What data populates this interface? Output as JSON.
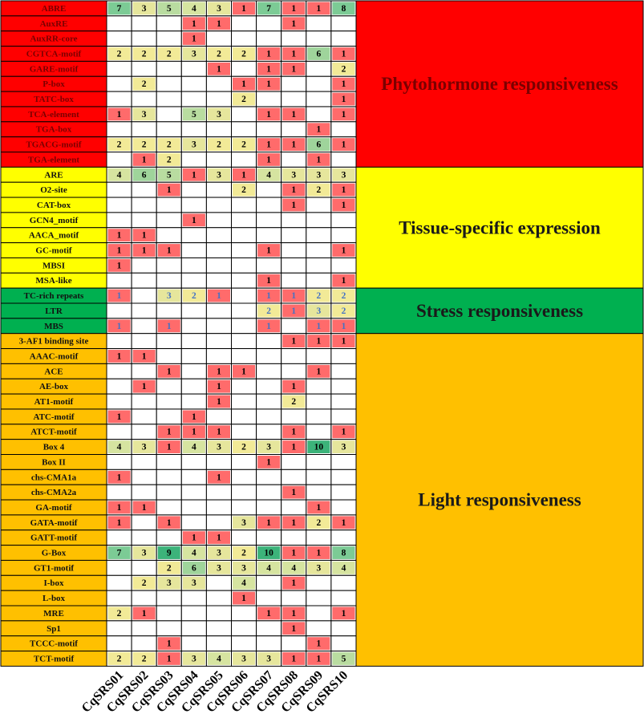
{
  "chart_data": {
    "type": "heatmap",
    "columns": [
      "CqSRS01",
      "CqSRS02",
      "CqSRS03",
      "CqSRS04",
      "CqSRS05",
      "CqSRS06",
      "CqSRS07",
      "CqSRS08",
      "CqSRS09",
      "CqSRS10"
    ],
    "rows": [
      {
        "motif": "ABRE",
        "values": [
          7,
          3,
          5,
          4,
          3,
          1,
          7,
          1,
          1,
          8
        ]
      },
      {
        "motif": "AuxRE",
        "values": [
          null,
          null,
          null,
          1,
          1,
          null,
          null,
          1,
          null,
          null
        ]
      },
      {
        "motif": "AuxRR-core",
        "values": [
          null,
          null,
          null,
          1,
          null,
          null,
          null,
          null,
          null,
          null
        ]
      },
      {
        "motif": "CGTCA-motif",
        "values": [
          2,
          2,
          2,
          3,
          2,
          2,
          1,
          1,
          6,
          1
        ]
      },
      {
        "motif": "GARE-motif",
        "values": [
          null,
          null,
          null,
          null,
          1,
          null,
          1,
          1,
          null,
          2
        ]
      },
      {
        "motif": "P-box",
        "values": [
          null,
          2,
          null,
          null,
          null,
          1,
          1,
          null,
          null,
          1
        ]
      },
      {
        "motif": "TATC-box",
        "values": [
          null,
          null,
          null,
          null,
          null,
          2,
          null,
          null,
          null,
          1
        ]
      },
      {
        "motif": "TCA-element",
        "values": [
          1,
          3,
          null,
          5,
          3,
          null,
          1,
          1,
          null,
          1
        ]
      },
      {
        "motif": "TGA-box",
        "values": [
          null,
          null,
          null,
          null,
          null,
          null,
          null,
          null,
          1,
          null
        ]
      },
      {
        "motif": "TGACG-motif",
        "values": [
          2,
          2,
          2,
          3,
          2,
          2,
          1,
          1,
          6,
          1
        ]
      },
      {
        "motif": "TGA-element",
        "values": [
          null,
          1,
          2,
          null,
          null,
          null,
          1,
          null,
          1,
          null
        ]
      },
      {
        "motif": "ARE",
        "values": [
          4,
          6,
          5,
          1,
          3,
          1,
          4,
          3,
          3,
          3
        ]
      },
      {
        "motif": "O2-site",
        "values": [
          null,
          null,
          1,
          null,
          null,
          2,
          null,
          1,
          2,
          1
        ]
      },
      {
        "motif": "CAT-box",
        "values": [
          null,
          null,
          null,
          null,
          null,
          null,
          null,
          1,
          null,
          1
        ]
      },
      {
        "motif": "GCN4_motif",
        "values": [
          null,
          null,
          null,
          1,
          null,
          null,
          null,
          null,
          null,
          null
        ]
      },
      {
        "motif": "AACA_motif",
        "values": [
          1,
          1,
          null,
          null,
          null,
          null,
          null,
          null,
          null,
          null
        ]
      },
      {
        "motif": "GC-motif",
        "values": [
          1,
          1,
          1,
          null,
          null,
          null,
          1,
          null,
          null,
          1
        ]
      },
      {
        "motif": "MBSI",
        "values": [
          1,
          null,
          null,
          null,
          null,
          null,
          null,
          null,
          null,
          null
        ]
      },
      {
        "motif": "MSA-like",
        "values": [
          null,
          null,
          null,
          null,
          null,
          null,
          1,
          null,
          null,
          1
        ]
      },
      {
        "motif": "TC-rich repeats",
        "values": [
          1,
          null,
          3,
          2,
          1,
          null,
          1,
          1,
          2,
          2
        ]
      },
      {
        "motif": "LTR",
        "values": [
          null,
          null,
          null,
          null,
          null,
          null,
          2,
          1,
          3,
          2
        ]
      },
      {
        "motif": "MBS",
        "values": [
          1,
          null,
          1,
          null,
          null,
          null,
          1,
          null,
          1,
          1
        ]
      },
      {
        "motif": "3-AF1 binding site",
        "values": [
          null,
          null,
          null,
          null,
          null,
          null,
          null,
          1,
          1,
          1
        ]
      },
      {
        "motif": "AAAC-motif",
        "values": [
          1,
          1,
          null,
          null,
          null,
          null,
          null,
          null,
          null,
          null
        ]
      },
      {
        "motif": "ACE",
        "values": [
          null,
          null,
          1,
          null,
          1,
          1,
          null,
          null,
          1,
          null
        ]
      },
      {
        "motif": "AE-box",
        "values": [
          null,
          1,
          null,
          null,
          1,
          null,
          null,
          1,
          null,
          null
        ]
      },
      {
        "motif": "AT1-motif",
        "values": [
          null,
          null,
          null,
          null,
          1,
          null,
          null,
          2,
          null,
          null
        ]
      },
      {
        "motif": "ATC-motif",
        "values": [
          1,
          null,
          null,
          1,
          null,
          null,
          null,
          null,
          null,
          null
        ]
      },
      {
        "motif": "ATCT-motif",
        "values": [
          null,
          null,
          1,
          1,
          1,
          null,
          null,
          1,
          null,
          1
        ]
      },
      {
        "motif": "Box 4",
        "values": [
          4,
          3,
          1,
          4,
          3,
          2,
          3,
          1,
          10,
          3
        ]
      },
      {
        "motif": "Box II",
        "values": [
          null,
          null,
          null,
          null,
          null,
          null,
          1,
          null,
          null,
          null
        ]
      },
      {
        "motif": "chs-CMA1a",
        "values": [
          1,
          null,
          null,
          null,
          1,
          null,
          null,
          null,
          null,
          null
        ]
      },
      {
        "motif": "chs-CMA2a",
        "values": [
          null,
          null,
          null,
          null,
          null,
          null,
          null,
          1,
          null,
          null
        ]
      },
      {
        "motif": "GA-motif",
        "values": [
          1,
          1,
          null,
          null,
          null,
          null,
          null,
          null,
          1,
          null
        ]
      },
      {
        "motif": "GATA-motif",
        "values": [
          1,
          null,
          1,
          null,
          null,
          3,
          1,
          1,
          2,
          1
        ]
      },
      {
        "motif": "GATT-motif",
        "values": [
          null,
          null,
          null,
          1,
          1,
          null,
          null,
          null,
          null,
          null
        ]
      },
      {
        "motif": "G-Box",
        "values": [
          7,
          3,
          9,
          4,
          3,
          2,
          10,
          1,
          1,
          8
        ]
      },
      {
        "motif": "GT1-motif",
        "values": [
          null,
          null,
          2,
          6,
          3,
          3,
          4,
          4,
          3,
          4
        ]
      },
      {
        "motif": "I-box",
        "values": [
          null,
          2,
          3,
          3,
          null,
          4,
          null,
          1,
          null,
          null
        ]
      },
      {
        "motif": "L-box",
        "values": [
          null,
          null,
          null,
          null,
          null,
          1,
          null,
          null,
          null,
          null
        ]
      },
      {
        "motif": "MRE",
        "values": [
          2,
          1,
          null,
          null,
          null,
          null,
          1,
          1,
          null,
          1
        ]
      },
      {
        "motif": "Sp1",
        "values": [
          null,
          null,
          null,
          null,
          null,
          null,
          null,
          1,
          null,
          null
        ]
      },
      {
        "motif": "TCCC-motif",
        "values": [
          null,
          null,
          1,
          null,
          null,
          null,
          null,
          null,
          1,
          null
        ]
      },
      {
        "motif": "TCT-motif",
        "values": [
          2,
          2,
          1,
          3,
          4,
          3,
          3,
          1,
          1,
          5
        ]
      }
    ],
    "groups": [
      {
        "name": "Phytohormone responsiveness",
        "start": 0,
        "end": 10,
        "color": "#ff0000"
      },
      {
        "name": "Tissue-specific expression",
        "start": 11,
        "end": 18,
        "color": "#ffff00"
      },
      {
        "name": "Stress responsiveness",
        "start": 19,
        "end": 21,
        "color": "#00b050"
      },
      {
        "name": "Light responsiveness",
        "start": 22,
        "end": 43,
        "color": "#ffc000"
      }
    ],
    "stress_value_color": "#4472c4",
    "label_text_colors": {
      "Phytohormone responsiveness": "#7b0000",
      "Tissue-specific expression": "#1a1a1a",
      "Stress responsiveness": "#1a1a1a",
      "Light responsiveness": "#1a1a1a"
    },
    "color_scale": [
      {
        "max": 1,
        "color": "#ff6b6b"
      },
      {
        "max": 2,
        "color": "#f2ea97"
      },
      {
        "max": 3,
        "color": "#e6e69c"
      },
      {
        "max": 4,
        "color": "#d6e4a0"
      },
      {
        "max": 5,
        "color": "#b9dca0"
      },
      {
        "max": 6,
        "color": "#9fd49b"
      },
      {
        "max": 8,
        "color": "#7ccb95"
      },
      {
        "max": 10,
        "color": "#3cb37a"
      }
    ]
  }
}
